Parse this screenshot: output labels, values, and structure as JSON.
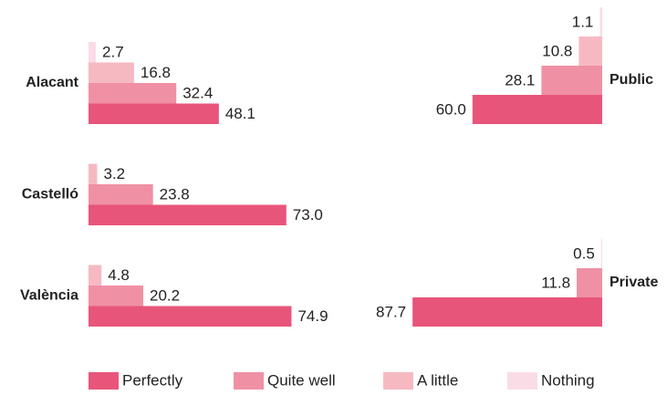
{
  "chart_data": [
    {
      "type": "bar",
      "orientation": "horizontal",
      "direction": "right",
      "categories": [
        "Alacant",
        "Castelló",
        "València"
      ],
      "xlim": [
        0,
        100
      ],
      "series": [
        {
          "name": "Perfectly",
          "color": "#e8557a",
          "values": [
            48.1,
            73.0,
            74.9
          ],
          "value_labels": [
            "48.1",
            "73.0",
            "74.9"
          ]
        },
        {
          "name": "Quite well",
          "color": "#ef90a4",
          "values": [
            32.4,
            23.8,
            20.2
          ],
          "value_labels": [
            "32.4",
            "23.8",
            "20.2"
          ]
        },
        {
          "name": "A little",
          "color": "#f6b9c2",
          "values": [
            16.8,
            3.2,
            4.8
          ],
          "value_labels": [
            "16.8",
            "3.2",
            "4.8"
          ]
        },
        {
          "name": "Nothing",
          "color": "#fadce7",
          "values": [
            2.7,
            null,
            null
          ],
          "value_labels": [
            "2.7",
            null,
            null
          ]
        }
      ]
    },
    {
      "type": "bar",
      "orientation": "horizontal",
      "direction": "left",
      "categories": [
        "Public",
        "Private"
      ],
      "xlim": [
        0,
        100
      ],
      "series": [
        {
          "color": "#e8557a",
          "values": [
            60.0,
            87.7
          ],
          "value_labels": [
            "60.0",
            "87.7"
          ]
        },
        {
          "color": "#ef90a4",
          "values": [
            28.1,
            11.8
          ],
          "value_labels": [
            "28.1",
            "11.8"
          ]
        },
        {
          "color": "#f6b9c2",
          "values": [
            10.8,
            null
          ],
          "value_labels": [
            "10.8",
            null
          ]
        },
        {
          "color": "#fadce7",
          "values": [
            1.1,
            0.5
          ],
          "value_labels": [
            "1.1",
            "0.5"
          ]
        }
      ]
    }
  ]
}
